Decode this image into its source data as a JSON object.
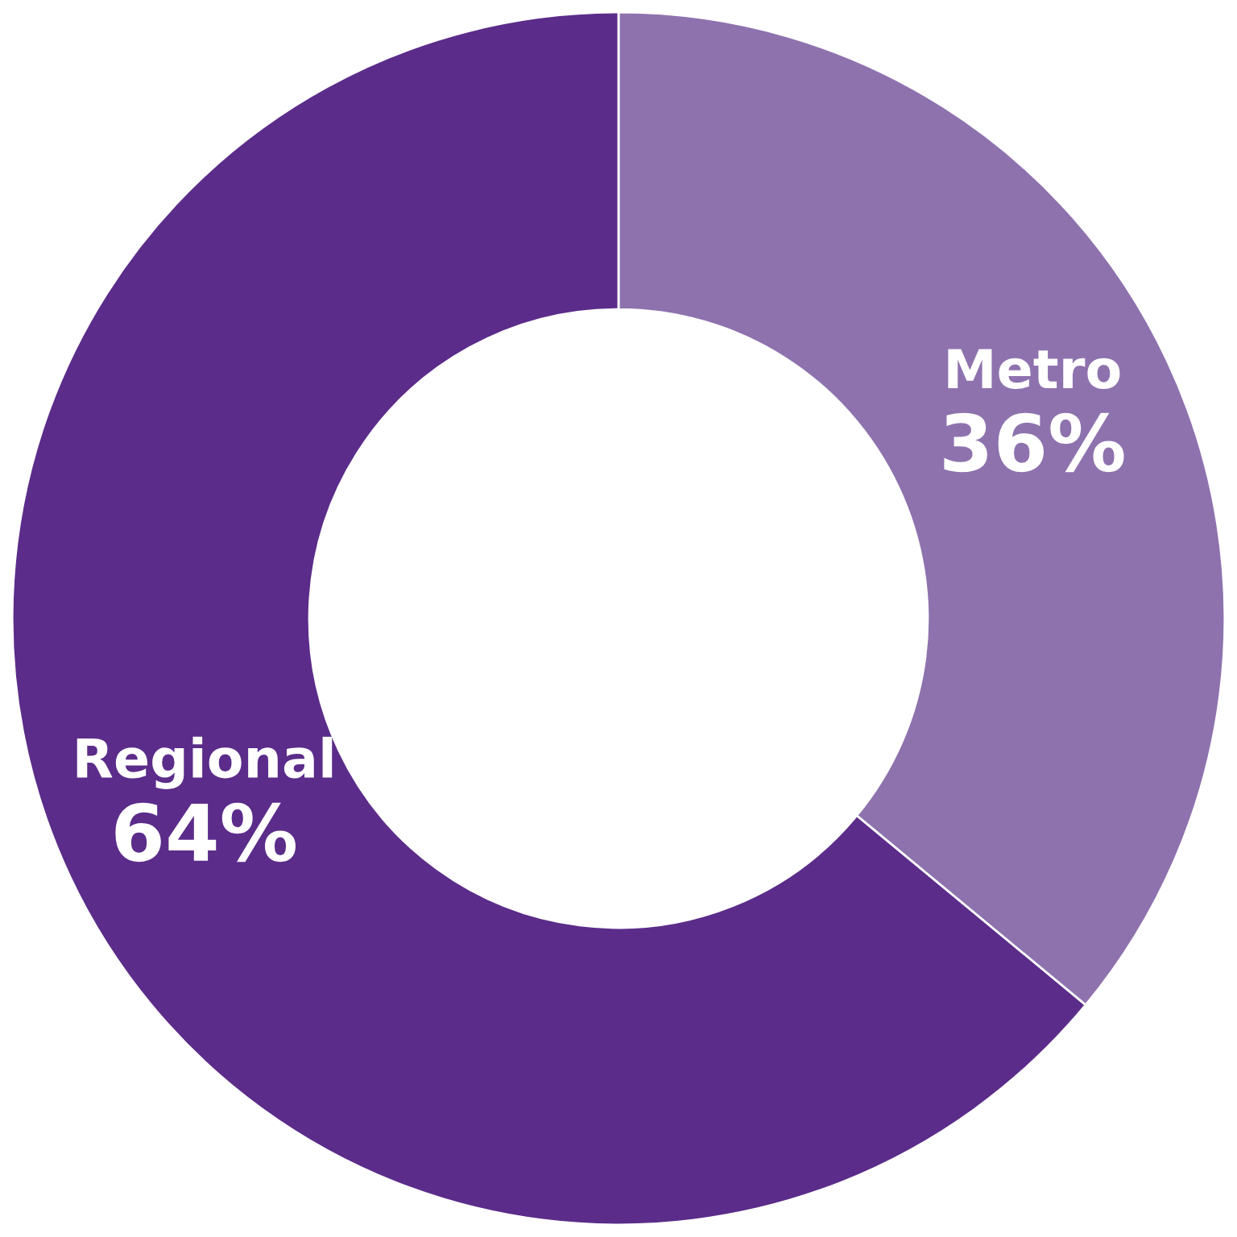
{
  "chart_data": {
    "type": "donut",
    "categories": [
      "Metro",
      "Regional"
    ],
    "values": [
      36,
      64
    ],
    "colors": [
      "#8e72ae",
      "#5b2c8a"
    ],
    "value_labels": [
      "36%",
      "64%"
    ],
    "legend": false
  }
}
